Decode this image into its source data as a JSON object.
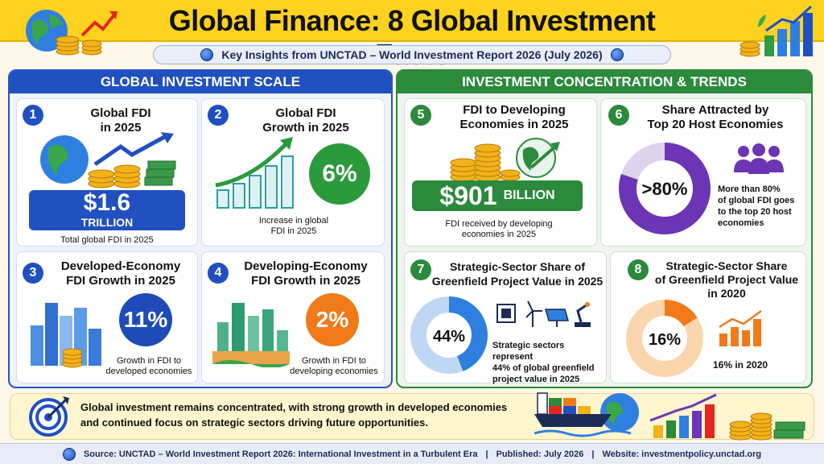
{
  "header": {
    "title": "Global Finance: 8 Global Investment Facts",
    "subtitle": "Key Insights from UNCTAD – World Investment Report 2026 (July 2026)"
  },
  "left_panel": {
    "heading": "GLOBAL INVESTMENT SCALE",
    "cards": [
      {
        "number": "1",
        "title_line1": "Global FDI",
        "title_line2": "in 2025",
        "value": "$1.6",
        "unit": "TRILLION",
        "caption": "Total global FDI in 2025"
      },
      {
        "number": "2",
        "title_line1": "Global FDI",
        "title_line2": "Growth in 2025",
        "value": "6%",
        "caption_line1": "Increase in global",
        "caption_line2": "FDI in 2025"
      },
      {
        "number": "3",
        "title_line1": "Developed-Economy",
        "title_line2": "FDI Growth in 2025",
        "value": "11%",
        "caption_line1": "Growth in FDI to",
        "caption_line2": "developed economies"
      },
      {
        "number": "4",
        "title_line1": "Developing-Economy",
        "title_line2": "FDI Growth in 2025",
        "value": "2%",
        "caption_line1": "Growth in FDI to",
        "caption_line2": "developing economies"
      }
    ]
  },
  "right_panel": {
    "heading": "INVESTMENT CONCENTRATION & TRENDS",
    "cards": [
      {
        "number": "5",
        "title_line1": "FDI to Developing",
        "title_line2": "Economies in 2025",
        "value": "$901",
        "unit": "BILLION",
        "caption_line1": "FDI received by developing",
        "caption_line2": "economies in 2025"
      },
      {
        "number": "6",
        "title_line1": "Share Attracted by",
        "title_line2": "Top 20 Host Economies",
        "value": ">80%",
        "share": 0.8,
        "caption_line1": "More than 80%",
        "caption_line2": "of global FDI goes",
        "caption_line3": "to the top 20 host",
        "caption_line4": "economies"
      },
      {
        "number": "7",
        "title_line1": "Strategic-Sector Share of",
        "title_line2": "Greenfield Project Value in 2025",
        "value": "44%",
        "share": 0.44,
        "caption_line1": "Strategic sectors represent",
        "caption_line2": "44% of global greenfield",
        "caption_line3": "project value in 2025"
      },
      {
        "number": "8",
        "title_line1": "Strategic-Sector Share",
        "title_line2": "of Greenfield Project Value",
        "title_line3": "in 2020",
        "value": "16%",
        "share": 0.16,
        "caption": "16% in 2020"
      }
    ]
  },
  "summary": {
    "line1": "Global investment remains concentrated, with strong growth in developed economies",
    "line2": "and continued focus on strategic sectors driving future opportunities."
  },
  "source": {
    "source_text": "Source: UNCTAD – World Investment Report 2026: International Investment in a Turbulent Era",
    "separator": "|",
    "published": "Published: July 2026",
    "website": "Website: investmentpolicy.unctad.org"
  },
  "colors": {
    "title_band": "#ffd21f",
    "left_accent": "#2150c0",
    "right_accent": "#2b8a3c",
    "orange": "#f07a1a",
    "purple": "#6b35b5"
  },
  "icons": [
    "globe-icon",
    "coins-icon",
    "growth-arrow-icon",
    "bar-chart-icon",
    "city-buildings-icon",
    "people-group-icon",
    "microchip-icon",
    "wind-turbine-icon",
    "solar-panel-icon",
    "robot-arm-icon",
    "target-icon",
    "cargo-ship-icon"
  ]
}
